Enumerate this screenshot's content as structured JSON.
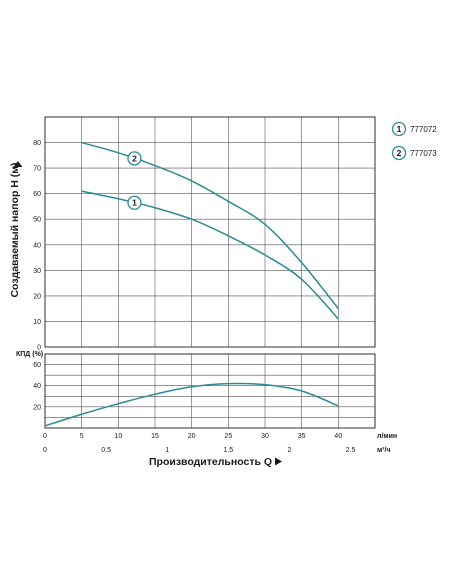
{
  "chart_data": [
    {
      "type": "line",
      "title": "",
      "xlabel": "Производительность Q",
      "ylabel": "Создаваемый напор H (м)",
      "x_unit_primary": "л/мин",
      "x_unit_secondary": "м³/ч",
      "xlim": [
        0,
        45
      ],
      "ylim": [
        0,
        90
      ],
      "x_ticks": [
        0,
        5,
        10,
        15,
        20,
        25,
        30,
        35,
        40
      ],
      "y_ticks": [
        0,
        10,
        20,
        30,
        40,
        50,
        60,
        70,
        80
      ],
      "x_ticks_secondary": [
        "0",
        "0.5",
        "1",
        "1.5",
        "2",
        "2.5"
      ],
      "x_ticks_secondary_values": [
        0,
        0.5,
        1,
        1.5,
        2,
        2.5
      ],
      "grid": true,
      "legend_position": "top-right",
      "series": [
        {
          "name": "777072",
          "marker": "1",
          "color": "#2a8c98",
          "x": [
            5,
            10,
            15,
            20,
            25,
            30,
            35,
            40
          ],
          "y": [
            61,
            58,
            54.5,
            50,
            43.5,
            36,
            26.5,
            11
          ]
        },
        {
          "name": "777073",
          "marker": "2",
          "color": "#2a8c98",
          "x": [
            5,
            10,
            15,
            20,
            25,
            30,
            35,
            40
          ],
          "y": [
            80,
            76,
            71,
            65,
            57,
            48,
            33,
            15
          ]
        }
      ]
    },
    {
      "type": "line",
      "title": "",
      "xlabel": "",
      "ylabel": "КПД (%)",
      "xlim": [
        0,
        45
      ],
      "ylim": [
        0,
        70
      ],
      "y_ticks": [
        20,
        40,
        60
      ],
      "x_ticks": [],
      "grid": true,
      "series": [
        {
          "color": "#2a8c98",
          "x": [
            0,
            5,
            10,
            15,
            20,
            25,
            30,
            35,
            40
          ],
          "y": [
            2,
            13,
            23,
            32,
            39,
            42,
            41,
            35,
            21
          ]
        }
      ]
    }
  ]
}
